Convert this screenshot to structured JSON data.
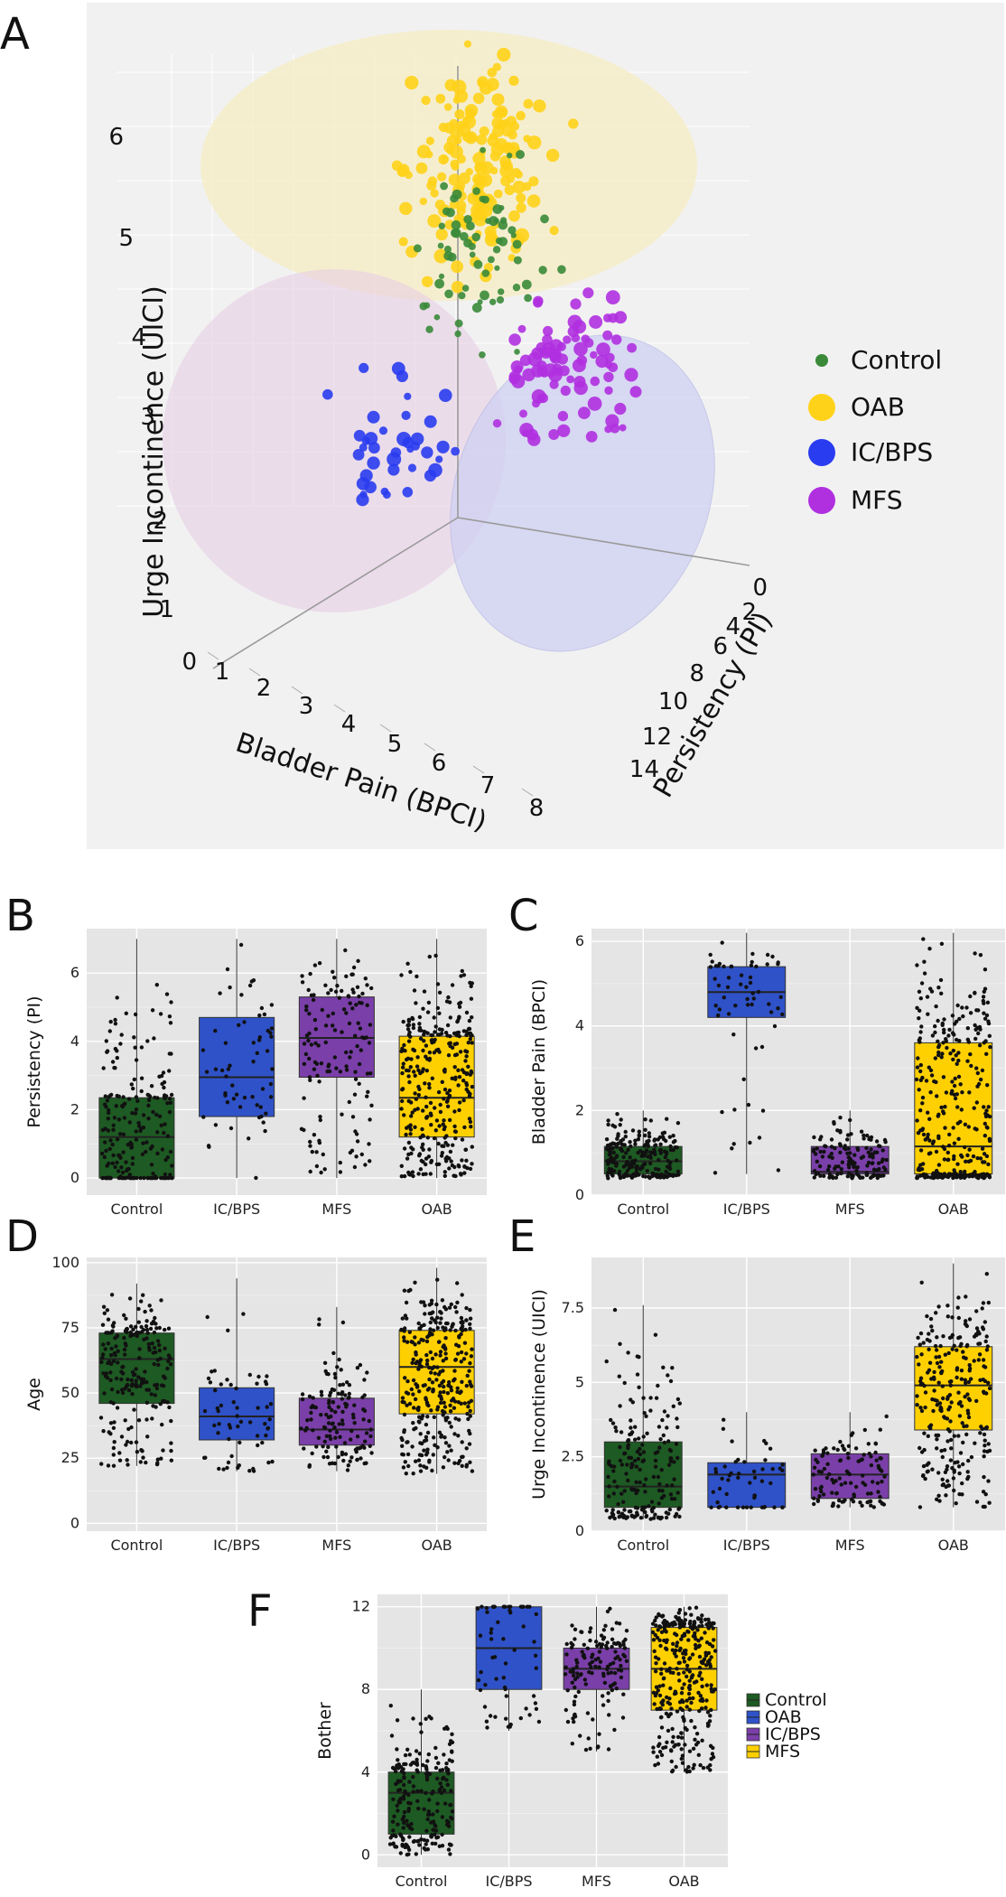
{
  "colors": {
    "Control": "#1e5a23",
    "OAB": "#ffd000",
    "IC/BPS": "#2f52c8",
    "MFS": "#7a3fa8",
    "scatter": {
      "Control": "#3a8a3a",
      "OAB": "#ffd21a",
      "IC/BPS": "#2a3cf0",
      "MFS": "#b030e0"
    },
    "panel_bg": "#e5e5e5",
    "grid": "#ffffff"
  },
  "panel_letters": {
    "A": "A",
    "B": "B",
    "C": "C",
    "D": "D",
    "E": "E",
    "F": "F"
  },
  "chart_data": [
    {
      "panel": "A",
      "type": "scatter",
      "dimensions": 3,
      "xlabel": "Bladder Pain (BPCI)",
      "ylabel": "Urge Incontinence (UICI)",
      "zlabel": "Persistency (PI)",
      "xticks": [
        "0",
        "1",
        "2",
        "3",
        "4",
        "5",
        "6",
        "7",
        "8"
      ],
      "yticks": [
        "1",
        "2",
        "3",
        "4",
        "5",
        "6"
      ],
      "zticks": [
        "0",
        "2",
        "4",
        "6",
        "8",
        "10",
        "12",
        "14"
      ],
      "legend": [
        "Control",
        "OAB",
        "IC/BPS",
        "MFS"
      ],
      "groups": [
        {
          "name": "OAB",
          "center_bpci": 2.0,
          "center_uici": 5.0,
          "center_pi": 4,
          "approx_points": 170
        },
        {
          "name": "IC/BPS",
          "center_bpci": 6.0,
          "center_uici": 2.5,
          "center_pi": 6,
          "approx_points": 40
        },
        {
          "name": "MFS",
          "center_bpci": 1.5,
          "center_uici": 2.5,
          "center_pi": 8,
          "approx_points": 90
        },
        {
          "name": "Control",
          "center_bpci": 1.0,
          "center_uici": 3.5,
          "center_pi": 3,
          "approx_points": 70
        }
      ]
    },
    {
      "panel": "B",
      "type": "box",
      "ylabel": "Persistency (PI)",
      "ylim": [
        -0.5,
        7.3
      ],
      "yticks": [
        "0",
        "2",
        "4",
        "6"
      ],
      "categories": [
        "Control",
        "IC/BPS",
        "MFS",
        "OAB"
      ],
      "fill_groups": [
        "Control",
        "IC/BPS",
        "MFS",
        "OAB"
      ],
      "boxes": [
        {
          "q1": 0.0,
          "median": 1.2,
          "q3": 2.35,
          "whislo": 0.0,
          "whishi": 7.0,
          "n": 220
        },
        {
          "q1": 1.8,
          "median": 2.95,
          "q3": 4.7,
          "whislo": 0.0,
          "whishi": 7.0,
          "n": 60
        },
        {
          "q1": 2.95,
          "median": 4.1,
          "q3": 5.3,
          "whislo": 0.0,
          "whishi": 7.0,
          "n": 140
        },
        {
          "q1": 1.2,
          "median": 2.35,
          "q3": 4.15,
          "whislo": 0.0,
          "whishi": 7.0,
          "n": 330
        }
      ]
    },
    {
      "panel": "C",
      "type": "box",
      "ylabel": "Bladder Pain (BPCI)",
      "ylim": [
        0,
        6.3
      ],
      "yticks": [
        "0",
        "2",
        "4",
        "6"
      ],
      "categories": [
        "Control",
        "IC/BPS",
        "MFS",
        "OAB"
      ],
      "fill_groups": [
        "Control",
        "IC/BPS",
        "MFS",
        "OAB"
      ],
      "boxes": [
        {
          "q1": 0.5,
          "median": 0.8,
          "q3": 1.15,
          "whislo": 0.4,
          "whishi": 2.0,
          "n": 220
        },
        {
          "q1": 4.2,
          "median": 4.8,
          "q3": 5.4,
          "whislo": 0.5,
          "whishi": 6.2,
          "n": 60
        },
        {
          "q1": 0.5,
          "median": 0.55,
          "q3": 1.15,
          "whislo": 0.4,
          "whishi": 2.0,
          "n": 140
        },
        {
          "q1": 0.5,
          "median": 1.15,
          "q3": 3.6,
          "whislo": 0.4,
          "whishi": 6.2,
          "n": 330
        }
      ]
    },
    {
      "panel": "D",
      "type": "box",
      "ylabel": "Age",
      "ylim": [
        -3,
        102
      ],
      "yticks": [
        "0",
        "25",
        "50",
        "75",
        "100"
      ],
      "categories": [
        "Control",
        "IC/BPS",
        "MFS",
        "OAB"
      ],
      "fill_groups": [
        "Control",
        "IC/BPS",
        "MFS",
        "OAB"
      ],
      "boxes": [
        {
          "q1": 46,
          "median": 63,
          "q3": 73,
          "whislo": 22,
          "whishi": 92,
          "n": 220
        },
        {
          "q1": 32,
          "median": 41,
          "q3": 52,
          "whislo": 20,
          "whishi": 94,
          "n": 60
        },
        {
          "q1": 30,
          "median": 36,
          "q3": 48,
          "whislo": 20,
          "whishi": 83,
          "n": 140
        },
        {
          "q1": 42,
          "median": 60,
          "q3": 74,
          "whislo": 19,
          "whishi": 98,
          "n": 330
        }
      ]
    },
    {
      "panel": "E",
      "type": "box",
      "ylabel": "Urge Incontinence (UICI)",
      "ylim": [
        0,
        9.2
      ],
      "yticks": [
        "0",
        "2.5",
        "5",
        "7.5"
      ],
      "categories": [
        "Control",
        "IC/BPS",
        "MFS",
        "OAB"
      ],
      "fill_groups": [
        "Control",
        "IC/BPS",
        "MFS",
        "OAB"
      ],
      "boxes": [
        {
          "q1": 0.8,
          "median": 1.5,
          "q3": 3.0,
          "whislo": 0.4,
          "whishi": 7.6,
          "n": 200
        },
        {
          "q1": 0.8,
          "median": 1.9,
          "q3": 2.3,
          "whislo": 0.8,
          "whishi": 4.0,
          "n": 50
        },
        {
          "q1": 1.1,
          "median": 1.9,
          "q3": 2.6,
          "whislo": 0.8,
          "whishi": 4.0,
          "n": 110
        },
        {
          "q1": 3.4,
          "median": 4.9,
          "q3": 6.2,
          "whislo": 0.8,
          "whishi": 9.0,
          "n": 260
        }
      ]
    },
    {
      "panel": "F",
      "type": "box",
      "ylabel": "Bother",
      "ylim": [
        -0.6,
        12.6
      ],
      "yticks": [
        "0",
        "4",
        "8",
        "12"
      ],
      "categories": [
        "Control",
        "IC/BPS",
        "MFS",
        "OAB"
      ],
      "fill_groups": [
        "Control",
        "IC/BPS",
        "MFS",
        "OAB"
      ],
      "legend": [
        "Control",
        "OAB",
        "IC/BPS",
        "MFS"
      ],
      "legend_colors": [
        "Control",
        "IC/BPS",
        "MFS",
        "OAB"
      ],
      "boxes": [
        {
          "q1": 1.0,
          "median": 3.0,
          "q3": 4.0,
          "whislo": 0.0,
          "whishi": 8.0,
          "n": 220
        },
        {
          "q1": 8.0,
          "median": 10.0,
          "q3": 12.0,
          "whislo": 6.0,
          "whishi": 12.0,
          "n": 60
        },
        {
          "q1": 8.0,
          "median": 9.0,
          "q3": 10.0,
          "whislo": 5.0,
          "whishi": 12.0,
          "n": 140
        },
        {
          "q1": 7.0,
          "median": 9.0,
          "q3": 11.0,
          "whislo": 4.0,
          "whishi": 12.0,
          "n": 330
        }
      ]
    }
  ]
}
